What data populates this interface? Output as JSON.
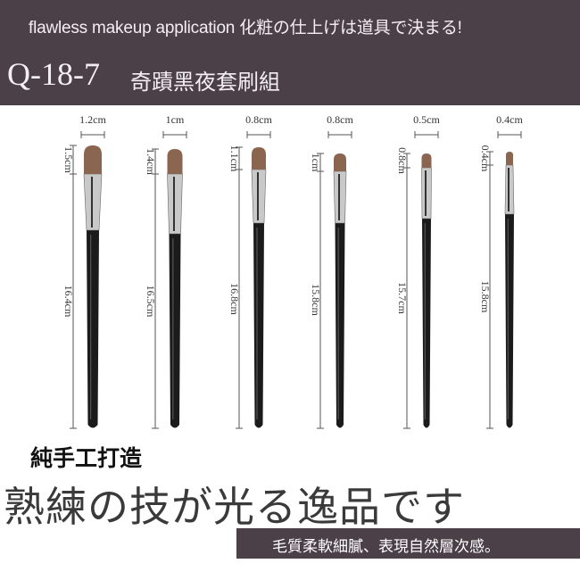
{
  "header": {
    "tagline": "flawless makeup application  化粧の仕上げは道具で決まる!",
    "model": "Q-18-7",
    "set_name": "奇蹟黑夜套刷組"
  },
  "brushes": [
    {
      "tip_width": "1.2cm",
      "head_length": "1.5cm",
      "total_length": "16.4cm"
    },
    {
      "tip_width": "1cm",
      "head_length": "1.4cm",
      "total_length": "16.5cm"
    },
    {
      "tip_width": "0.8cm",
      "head_length": "1.1cm",
      "total_length": "16.8cm"
    },
    {
      "tip_width": "0.8cm",
      "head_length": "1cm",
      "total_length": "15.8cm"
    },
    {
      "tip_width": "0.5cm",
      "head_length": "0.8cm",
      "total_length": "15.7cm"
    },
    {
      "tip_width": "0.4cm",
      "head_length": "0.4cm",
      "total_length": "15.8cm"
    }
  ],
  "colors": {
    "header_bg": "#4b3f48",
    "bristle": "#8a6650",
    "handle": "#1b1b1b",
    "ferrule": "#c9c9c9"
  },
  "footer": {
    "handmade": "純手工打造",
    "headline": "熟練の技が光る逸品です",
    "banner": "毛質柔軟細膩、表現自然層次感。"
  }
}
